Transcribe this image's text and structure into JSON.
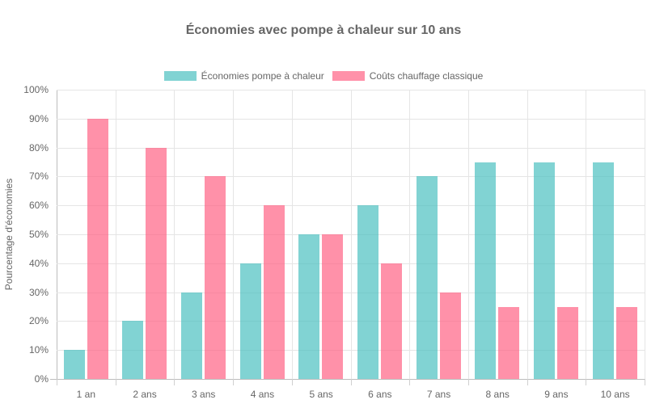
{
  "chart_data": {
    "type": "bar",
    "title": "Économies avec pompe à chaleur sur 10 ans",
    "xlabel": "",
    "ylabel": "Pourcentage d'économies",
    "ylim": [
      0,
      100
    ],
    "yticks": [
      "0%",
      "10%",
      "20%",
      "30%",
      "40%",
      "50%",
      "60%",
      "70%",
      "80%",
      "90%",
      "100%"
    ],
    "categories": [
      "1 an",
      "2 ans",
      "3 ans",
      "4 ans",
      "5 ans",
      "6 ans",
      "7 ans",
      "8 ans",
      "9 ans",
      "10 ans"
    ],
    "series": [
      {
        "name": "Économies pompe à chaleur",
        "color": "#4bc0c0",
        "values": [
          10,
          20,
          30,
          40,
          50,
          60,
          70,
          75,
          75,
          75
        ]
      },
      {
        "name": "Coûts chauffage classique",
        "color": "#ff6384",
        "values": [
          90,
          80,
          70,
          60,
          50,
          40,
          30,
          25,
          25,
          25
        ]
      }
    ],
    "grid": true,
    "legend_position": "top"
  }
}
